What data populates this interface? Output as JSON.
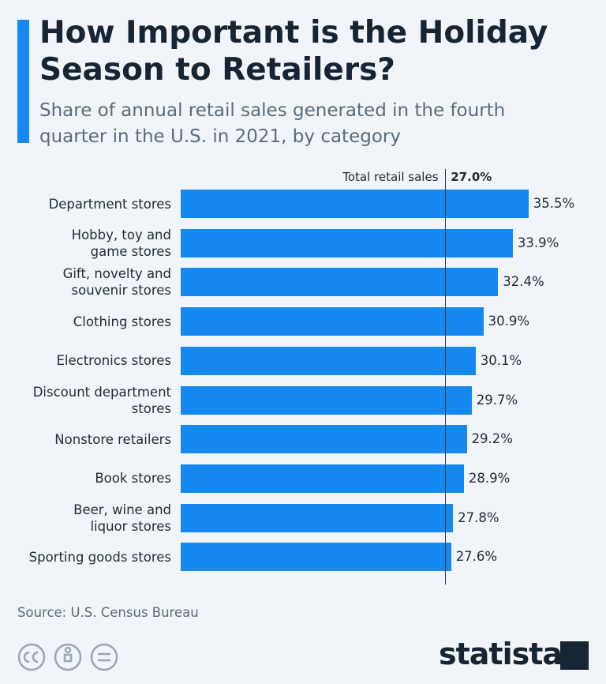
{
  "chart_data": {
    "type": "hbar",
    "title": "How Important is the Holiday Season to Retailers?",
    "subtitle": "Share of annual retail sales generated in the fourth quarter in the U.S. in 2021, by category",
    "categories": [
      "Department stores",
      "Hobby, toy and\ngame stores",
      "Gift, novelty and\nsouvenir stores",
      "Clothing stores",
      "Electronics stores",
      "Discount department\nstores",
      "Nonstore retailers",
      "Book stores",
      "Beer, wine and\nliquor stores",
      "Sporting goods stores"
    ],
    "values": [
      35.5,
      33.9,
      32.4,
      30.9,
      30.1,
      29.7,
      29.2,
      28.9,
      27.8,
      27.6
    ],
    "value_labels": [
      "35.5%",
      "33.9%",
      "32.4%",
      "30.9%",
      "30.1%",
      "29.7%",
      "29.2%",
      "28.9%",
      "27.8%",
      "27.6%"
    ],
    "color": "#1589f0",
    "xlim": [
      0,
      36
    ],
    "reference_line": {
      "label": "Total retail sales",
      "value": 27.0,
      "value_label": "27.0%"
    },
    "source": "Source: U.S. Census Bureau",
    "brand": "statista"
  }
}
